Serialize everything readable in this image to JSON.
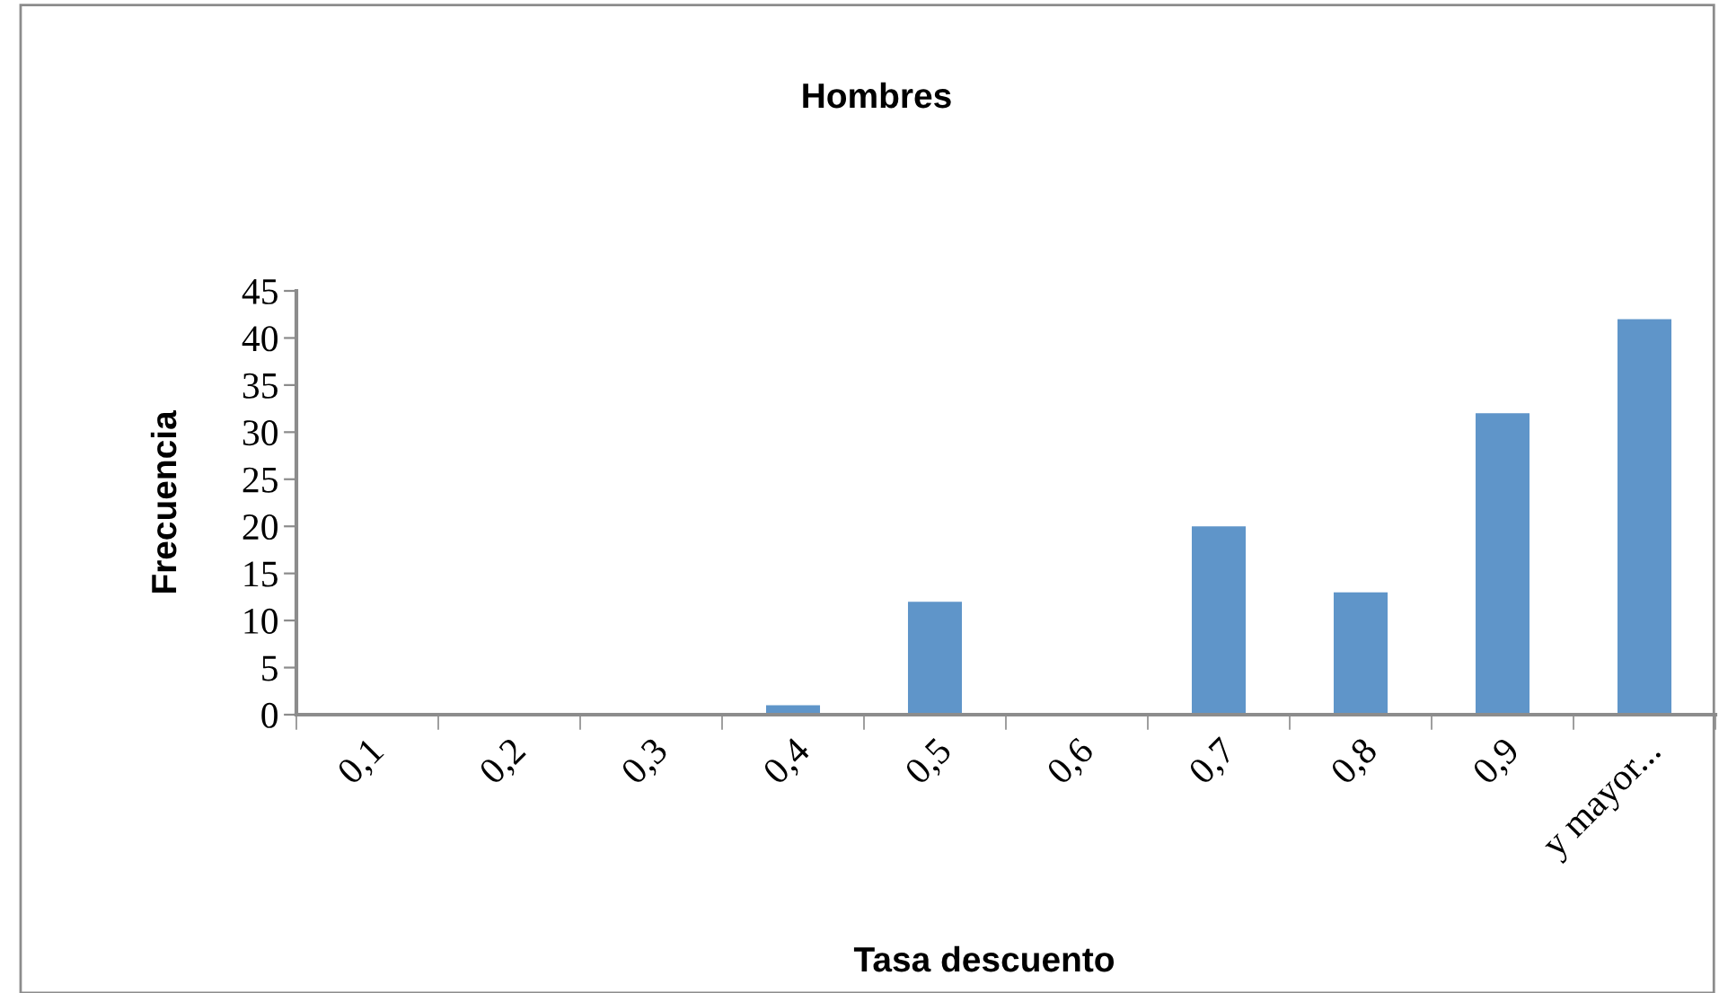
{
  "chart_data": {
    "type": "bar",
    "title": "Hombres",
    "xlabel": "Tasa descuento",
    "ylabel": "Frecuencia",
    "categories": [
      "0,1",
      "0,2",
      "0,3",
      "0,4",
      "0,5",
      "0,6",
      "0,7",
      "0,8",
      "0,9",
      "y mayor..."
    ],
    "values": [
      0,
      0,
      0,
      1,
      12,
      0,
      20,
      13,
      32,
      42
    ],
    "color": "#5f95c9",
    "ylim": [
      0,
      45
    ],
    "yticks": [
      0,
      5,
      10,
      15,
      20,
      25,
      30,
      35,
      40,
      45
    ],
    "grid": false,
    "legend": false
  }
}
